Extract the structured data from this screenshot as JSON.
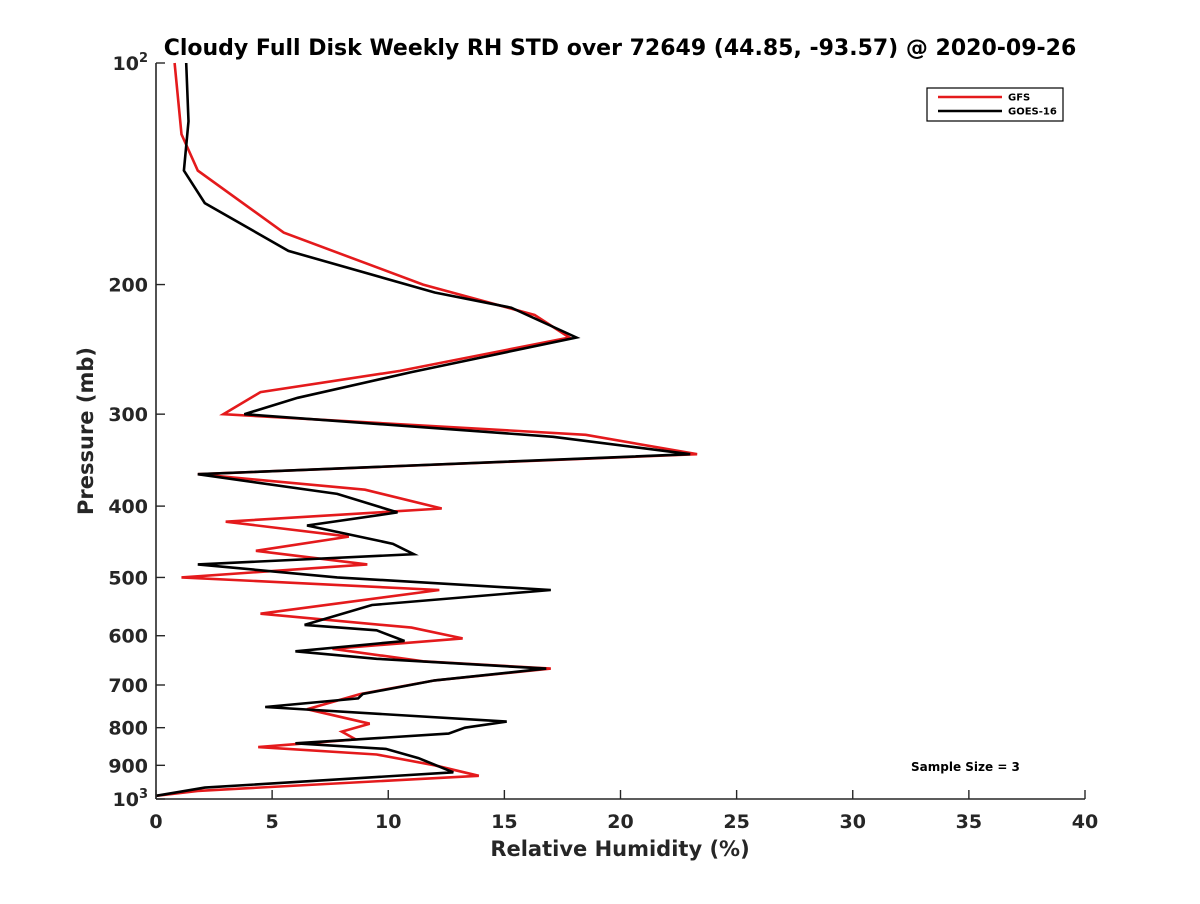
{
  "chart_data": {
    "type": "line",
    "title": "Cloudy Full Disk Weekly RH STD over 72649 (44.85, -93.57) @ 2020-09-26",
    "xlabel": "Relative Humidity (%)",
    "ylabel": "Pressure (mb)",
    "xlim": [
      0,
      40
    ],
    "ylim": [
      100,
      1000
    ],
    "y_scale": "log",
    "y_reversed": true,
    "x_ticks": [
      0,
      5,
      10,
      15,
      20,
      25,
      30,
      35,
      40
    ],
    "y_ticks": [
      {
        "value": 100,
        "label": "10",
        "sup": "2"
      },
      {
        "value": 200,
        "label": "200",
        "sup": ""
      },
      {
        "value": 300,
        "label": "300",
        "sup": ""
      },
      {
        "value": 400,
        "label": "400",
        "sup": ""
      },
      {
        "value": 500,
        "label": "500",
        "sup": ""
      },
      {
        "value": 600,
        "label": "600",
        "sup": ""
      },
      {
        "value": 700,
        "label": "700",
        "sup": ""
      },
      {
        "value": 800,
        "label": "800",
        "sup": ""
      },
      {
        "value": 900,
        "label": "900",
        "sup": ""
      },
      {
        "value": 1000,
        "label": "10",
        "sup": "3"
      }
    ],
    "grid": false,
    "legend_position": "top-right",
    "annotation": "Sample Size = 3",
    "series": [
      {
        "name": "GFS",
        "color": "#e41a1c",
        "points": [
          [
            0.8,
            100
          ],
          [
            1.1,
            125
          ],
          [
            1.8,
            140
          ],
          [
            5.5,
            170
          ],
          [
            11.5,
            200
          ],
          [
            16.3,
            220
          ],
          [
            17.8,
            236
          ],
          [
            10.5,
            262
          ],
          [
            4.5,
            280
          ],
          [
            2.9,
            300
          ],
          [
            18.5,
            320
          ],
          [
            23.3,
            340
          ],
          [
            1.8,
            362
          ],
          [
            9.0,
            380
          ],
          [
            12.3,
            403
          ],
          [
            3.0,
            420
          ],
          [
            8.3,
            440
          ],
          [
            4.3,
            460
          ],
          [
            9.1,
            480
          ],
          [
            1.1,
            500
          ],
          [
            12.2,
            520
          ],
          [
            4.5,
            560
          ],
          [
            11.0,
            585
          ],
          [
            13.2,
            605
          ],
          [
            7.6,
            625
          ],
          [
            11.5,
            650
          ],
          [
            17.0,
            665
          ],
          [
            12.0,
            690
          ],
          [
            8.8,
            720
          ],
          [
            6.5,
            755
          ],
          [
            9.2,
            790
          ],
          [
            8.0,
            810
          ],
          [
            8.6,
            830
          ],
          [
            4.4,
            850
          ],
          [
            9.5,
            870
          ],
          [
            12.0,
            900
          ],
          [
            13.9,
            930
          ],
          [
            1.8,
            975
          ],
          [
            0.0,
            990
          ]
        ]
      },
      {
        "name": "GOES-16",
        "color": "#000000",
        "points": [
          [
            1.3,
            100
          ],
          [
            1.4,
            120
          ],
          [
            1.2,
            140
          ],
          [
            2.1,
            155
          ],
          [
            5.7,
            180
          ],
          [
            12.0,
            205
          ],
          [
            15.3,
            215
          ],
          [
            18.1,
            236
          ],
          [
            11.0,
            263
          ],
          [
            6.1,
            285
          ],
          [
            3.8,
            300
          ],
          [
            17.1,
            322
          ],
          [
            23.0,
            340
          ],
          [
            1.8,
            362
          ],
          [
            7.8,
            385
          ],
          [
            10.4,
            408
          ],
          [
            6.5,
            425
          ],
          [
            10.2,
            450
          ],
          [
            11.1,
            465
          ],
          [
            1.8,
            480
          ],
          [
            7.8,
            500
          ],
          [
            17.0,
            520
          ],
          [
            9.3,
            545
          ],
          [
            6.4,
            580
          ],
          [
            9.5,
            590
          ],
          [
            10.7,
            610
          ],
          [
            6.0,
            630
          ],
          [
            9.5,
            645
          ],
          [
            16.8,
            665
          ],
          [
            12.0,
            690
          ],
          [
            8.9,
            720
          ],
          [
            8.7,
            730
          ],
          [
            4.7,
            750
          ],
          [
            15.1,
            785
          ],
          [
            13.3,
            800
          ],
          [
            12.6,
            815
          ],
          [
            6.0,
            840
          ],
          [
            9.9,
            855
          ],
          [
            11.3,
            880
          ],
          [
            12.8,
            920
          ],
          [
            2.1,
            965
          ],
          [
            0.0,
            990
          ]
        ]
      }
    ]
  }
}
